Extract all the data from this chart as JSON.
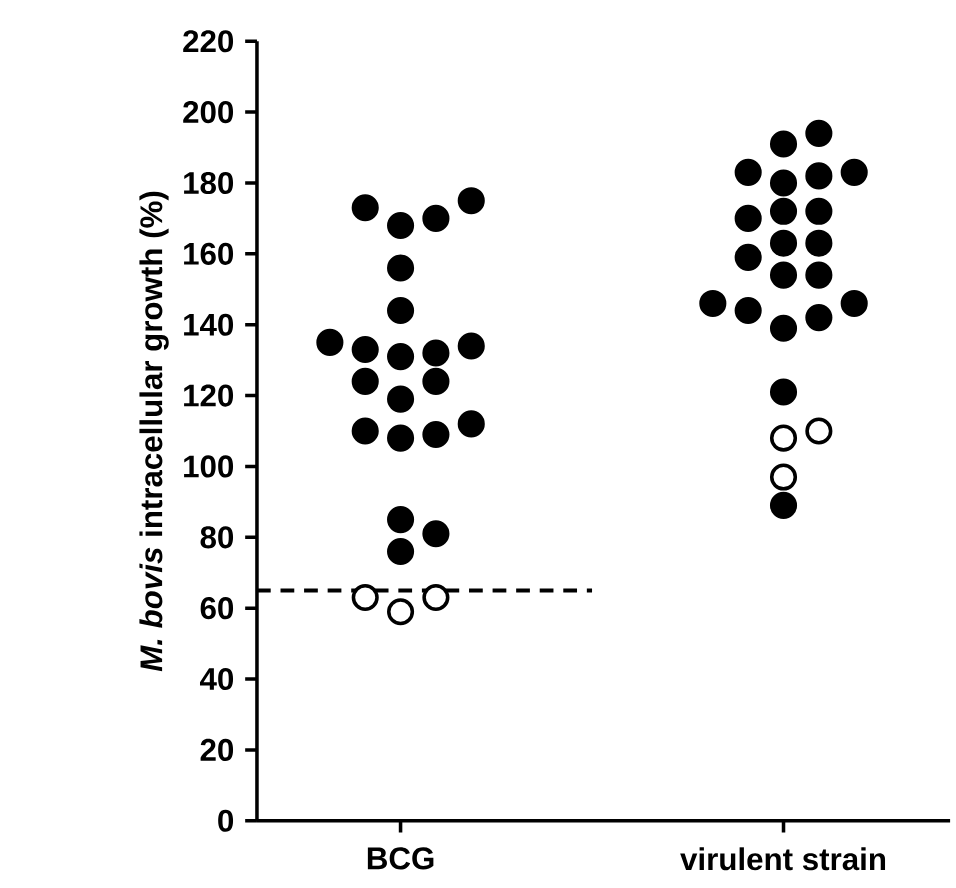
{
  "chart_data": {
    "type": "scatter",
    "ylabel": "*M. bovis* intracellular growth (%)",
    "categories": [
      "BCG",
      "virulent strain"
    ],
    "ylim": [
      0,
      220
    ],
    "yticks": [
      0,
      20,
      40,
      60,
      80,
      100,
      120,
      140,
      160,
      180,
      200,
      220
    ],
    "marker": "circle",
    "series": [
      {
        "color": "#000000",
        "x": [
          "BCG",
          "BCG",
          "BCG",
          "BCG",
          "BCG",
          "BCG",
          "BCG",
          "BCG",
          "BCG",
          "BCG",
          "BCG",
          "BCG",
          "BCG",
          "BCG",
          "BCG",
          "BCG",
          "BCG",
          "BCG",
          "BCG",
          "BCG",
          "BCG",
          "virulent strain",
          "virulent strain",
          "virulent strain",
          "virulent strain",
          "virulent strain",
          "virulent strain",
          "virulent strain",
          "virulent strain",
          "virulent strain",
          "virulent strain",
          "virulent strain",
          "virulent strain",
          "virulent strain",
          "virulent strain",
          "virulent strain",
          "virulent strain",
          "virulent strain",
          "virulent strain",
          "virulent strain",
          "virulent strain",
          "virulent strain"
        ],
        "values": [
          175,
          170,
          168,
          173,
          156,
          144,
          135,
          133,
          131,
          132,
          134,
          124,
          124,
          119,
          110,
          108,
          109,
          112,
          81,
          76,
          85,
          194,
          191,
          183,
          180,
          182,
          183,
          172,
          170,
          172,
          163,
          159,
          163,
          154,
          154,
          146,
          142,
          139,
          144,
          146,
          121,
          89
        ]
      },
      {
        "color": "#ffffff",
        "x": [
          "BCG",
          "BCG",
          "BCG",
          "virulent strain",
          "virulent strain",
          "virulent strain"
        ],
        "values": [
          63,
          59,
          63,
          110,
          108,
          97
        ]
      }
    ],
    "ref_lines": [
      {
        "axis": "y",
        "value": 65,
        "line_style": "dashed"
      }
    ]
  }
}
